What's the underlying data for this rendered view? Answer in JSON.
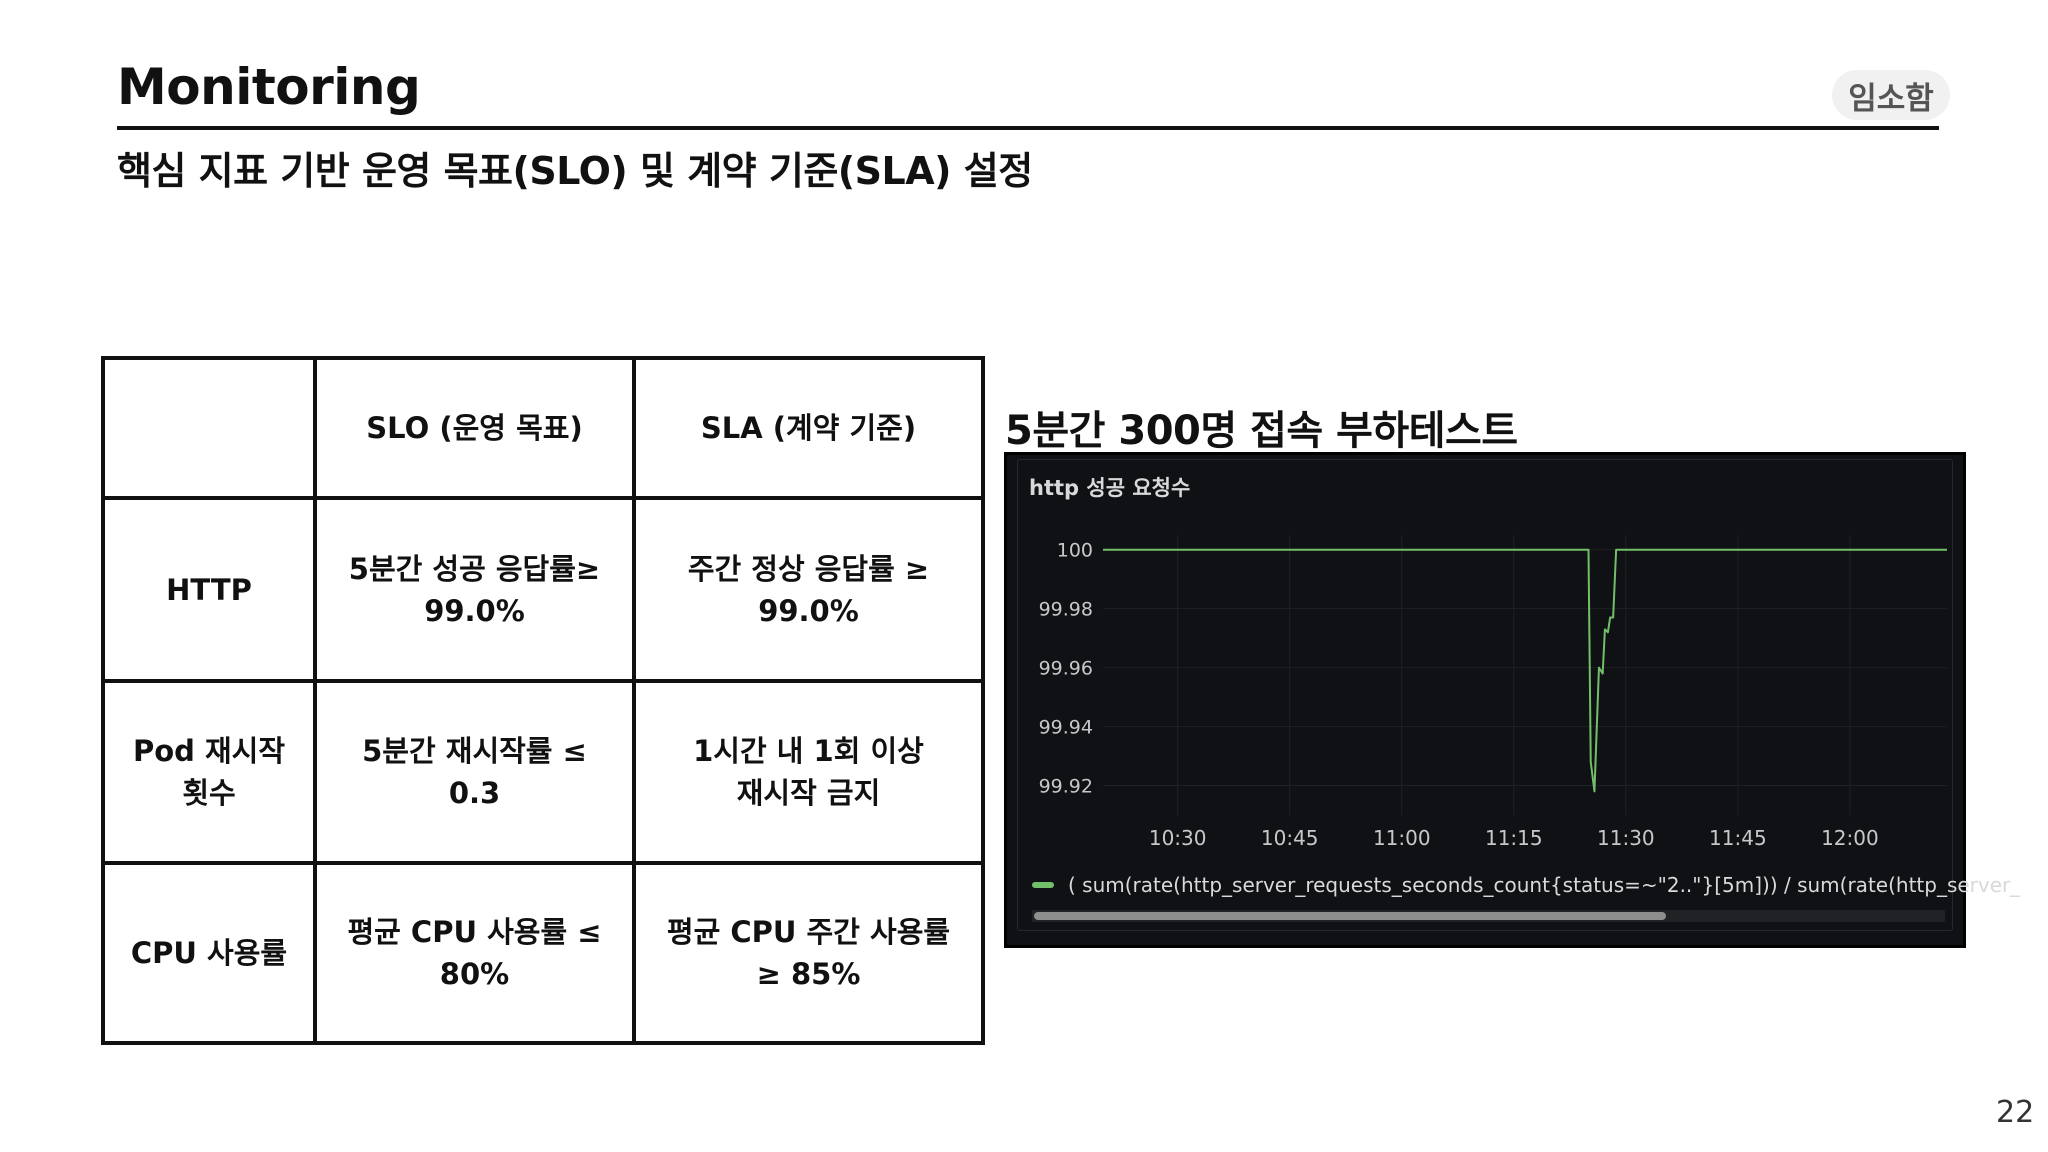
{
  "slide": {
    "title": "Monitoring",
    "author": "임소함",
    "subtitle": "핵심 지표 기반 운영 목표(SLO) 및 계약 기준(SLA) 설정",
    "page_number": "22"
  },
  "table": {
    "headers": [
      "",
      "SLO (운영 목표)",
      "SLA (계약 기준)"
    ],
    "rows": [
      {
        "metric": [
          "HTTP"
        ],
        "slo": [
          "5분간 성공 응답률≥",
          "99.0%"
        ],
        "sla": [
          "주간 정상 응답률 ≥",
          "99.0%"
        ]
      },
      {
        "metric": [
          "Pod 재시작",
          "횟수"
        ],
        "slo": [
          "5분간 재시작률 ≤",
          "0.3"
        ],
        "sla": [
          "1시간 내 1회 이상",
          "재시작 금지"
        ]
      },
      {
        "metric": [
          "CPU 사용률"
        ],
        "slo": [
          "평균 CPU 사용률 ≤",
          "80%"
        ],
        "sla": [
          "평균 CPU 주간 사용률",
          "≥ 85%"
        ]
      }
    ]
  },
  "chart_title": "5분간 300명 접속 부하테스트",
  "panel": {
    "name": "http 성공 요청수",
    "legend": "( sum(rate(http_server_requests_seconds_count{status=~\"2..\"}[5m])) / sum(rate(http_server_"
  },
  "chart_data": {
    "type": "line",
    "x_ticks": [
      "10:30",
      "10:45",
      "11:00",
      "11:15",
      "11:30",
      "11:45",
      "12:00"
    ],
    "y_ticks": [
      "100",
      "99.98",
      "99.96",
      "99.94",
      "99.92"
    ],
    "ylim": [
      99.91,
      100.005
    ],
    "xlim": [
      "10:20",
      "12:13"
    ],
    "grid": true,
    "series": [
      {
        "color": "#73bf69",
        "points": [
          [
            "10:20",
            100
          ],
          [
            "11:25",
            100
          ],
          [
            "11:25.3",
            99.928
          ],
          [
            "11:25.8",
            99.918
          ],
          [
            "11:26.4",
            99.96
          ],
          [
            "11:26.9",
            99.958
          ],
          [
            "11:27.2",
            99.973
          ],
          [
            "11:27.6",
            99.972
          ],
          [
            "11:27.9",
            99.977
          ],
          [
            "11:28.3",
            99.977
          ],
          [
            "11:28.7",
            100
          ],
          [
            "12:13",
            100
          ]
        ]
      }
    ]
  }
}
